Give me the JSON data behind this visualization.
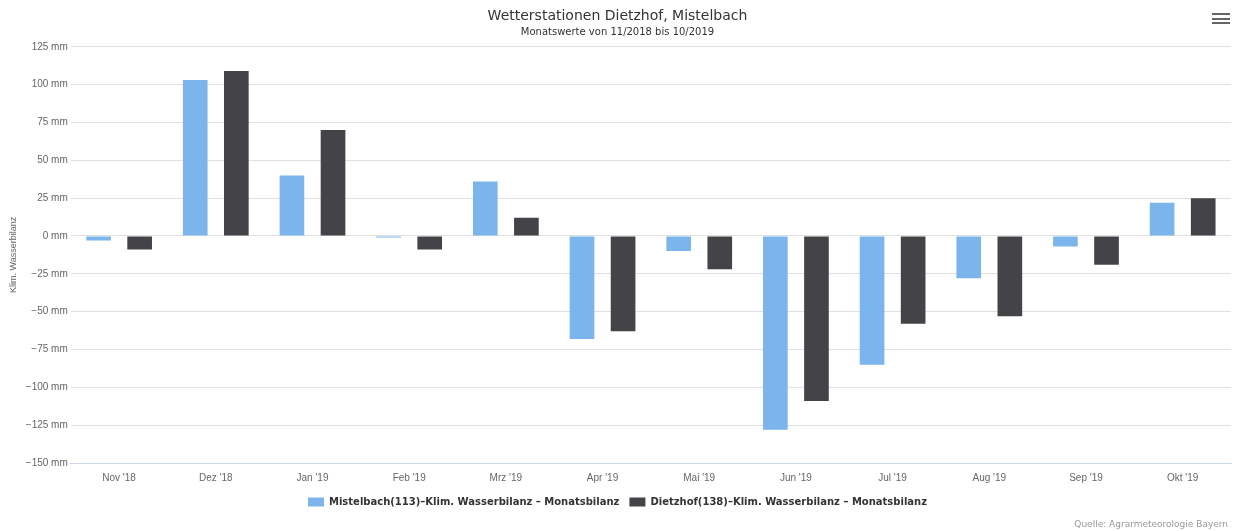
{
  "chart_data": {
    "type": "bar",
    "title": "Wetterstationen Dietzhof, Mistelbach",
    "subtitle": "Monatswerte von 11/2018 bis 10/2019",
    "ylabel": "Klim. Wasserbilanz",
    "categories": [
      "Nov '18",
      "Dez '18",
      "Jan '19",
      "Feb '19",
      "Mrz '19",
      "Apr '19",
      "Mai '19",
      "Jun '19",
      "Jul '19",
      "Aug '19",
      "Sep '19",
      "Okt '19"
    ],
    "series": [
      {
        "name": "Mistelbach(113)–Klim. Wasserbilanz – Monatsbilanz",
        "color": "#7cb5ec",
        "values": [
          -3,
          103,
          40,
          -1,
          36,
          -68,
          -10,
          -128,
          -85,
          -28,
          -7,
          22
        ]
      },
      {
        "name": "Dietzhof(138)–Klim. Wasserbilanz – Monatsbilanz",
        "color": "#434348",
        "values": [
          -9,
          109,
          70,
          -9,
          12,
          -63,
          -22,
          -109,
          -58,
          -53,
          -19,
          25
        ]
      }
    ],
    "ylim": [
      -150,
      125
    ],
    "yticks": [
      {
        "value": -150,
        "label": "−150 mm"
      },
      {
        "value": -125,
        "label": "−125 mm"
      },
      {
        "value": -100,
        "label": "−100 mm"
      },
      {
        "value": -75,
        "label": "−75 mm"
      },
      {
        "value": -50,
        "label": "−50 mm"
      },
      {
        "value": -25,
        "label": "−25 mm"
      },
      {
        "value": 0,
        "label": "0 mm"
      },
      {
        "value": 25,
        "label": "25 mm"
      },
      {
        "value": 50,
        "label": "50 mm"
      },
      {
        "value": 75,
        "label": "75 mm"
      },
      {
        "value": 100,
        "label": "100 mm"
      },
      {
        "value": 125,
        "label": "125 mm"
      }
    ],
    "grid": "y",
    "legend": "bottom",
    "annotations": [
      "Quelle: Agrarmeteorologie Bayern"
    ]
  }
}
